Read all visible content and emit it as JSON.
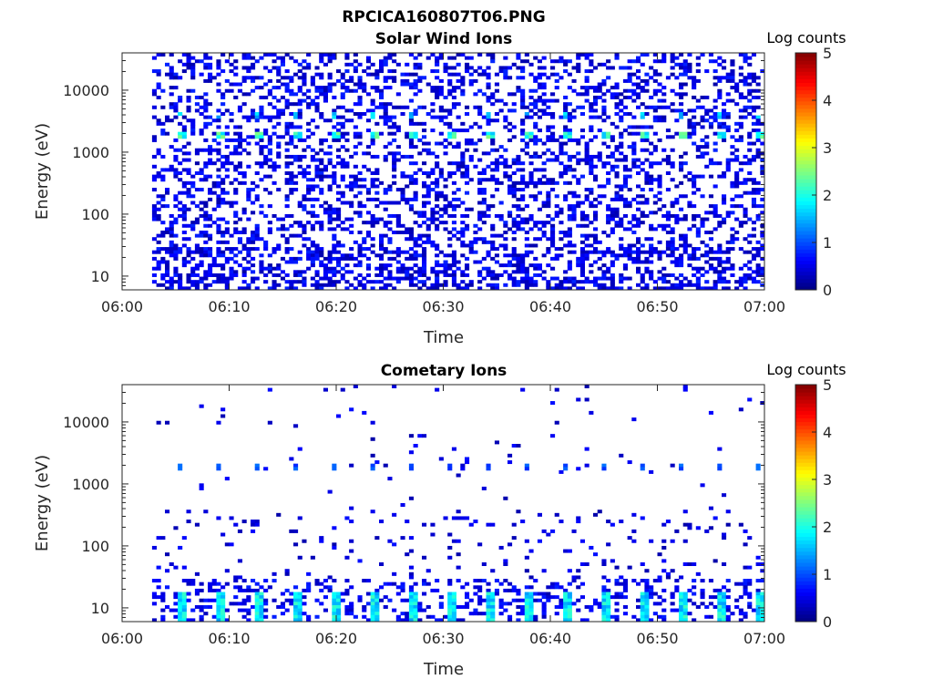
{
  "figure": {
    "title": "RPCICA160807T06.PNG"
  },
  "colorbar": {
    "label": "Log counts",
    "ticks": [
      "0",
      "1",
      "2",
      "3",
      "4",
      "5"
    ],
    "range": [
      0,
      5
    ],
    "colormap": "jet"
  },
  "chart_data": [
    {
      "type": "heatmap",
      "title": "Solar Wind Ions",
      "xlabel": "Time",
      "ylabel": "Energy (eV)",
      "x_ticks": [
        "06:00",
        "06:10",
        "06:20",
        "06:30",
        "06:40",
        "06:50",
        "07:00"
      ],
      "x_range": [
        "06:00",
        "07:00"
      ],
      "y_scale": "log",
      "y_ticks": [
        "10",
        "100",
        "1000",
        "10000"
      ],
      "y_range": [
        6,
        40000
      ],
      "z_label": "Log counts",
      "z_range": [
        0,
        5
      ],
      "peak_energy_eV": 1900,
      "peak_log_counts": 2.5,
      "background_log_counts": [
        0,
        1
      ]
    },
    {
      "type": "heatmap",
      "title": "Cometary Ions",
      "xlabel": "Time",
      "ylabel": "Energy (eV)",
      "x_ticks": [
        "06:00",
        "06:10",
        "06:20",
        "06:30",
        "06:40",
        "06:50",
        "07:00"
      ],
      "x_range": [
        "06:00",
        "07:00"
      ],
      "y_scale": "log",
      "y_ticks": [
        "10",
        "100",
        "1000",
        "10000"
      ],
      "y_range": [
        6,
        40000
      ],
      "z_label": "Log counts",
      "z_range": [
        0,
        5
      ],
      "peak_energy_eV": 13,
      "peak_log_counts": 2.2,
      "background_log_counts": [
        0,
        1
      ]
    }
  ]
}
